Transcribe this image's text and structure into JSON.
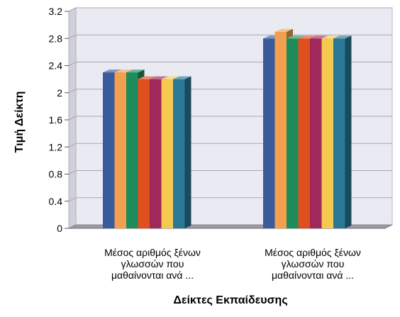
{
  "chart_data": {
    "type": "bar",
    "style": "3d-clustered",
    "title": "",
    "xlabel": "Δείκτες Εκπαίδευσης",
    "ylabel": "Τιμή Δείκτη",
    "ylim": [
      0,
      3.2
    ],
    "yticks": [
      "0",
      "0.4",
      "0.8",
      "1.2",
      "1.6",
      "2",
      "2.4",
      "2.8",
      "3.2"
    ],
    "grid": true,
    "legend": "none",
    "categories": [
      [
        "Μέσος αριθμός ξένων",
        "γλωσσών που",
        "μαθαίνονται ανά ..."
      ],
      [
        "Μέσος αριθμός ξένων",
        "γλωσσών που",
        "μαθαίνονται ανά ..."
      ]
    ],
    "series": [
      {
        "color": "#3a5a9c",
        "values": [
          2.3,
          2.8
        ]
      },
      {
        "color": "#f2a050",
        "values": [
          2.3,
          2.9
        ]
      },
      {
        "color": "#1e8c5a",
        "values": [
          2.3,
          2.8
        ]
      },
      {
        "color": "#e0501e",
        "values": [
          2.2,
          2.8
        ]
      },
      {
        "color": "#a0285a",
        "values": [
          2.2,
          2.8
        ]
      },
      {
        "color": "#f5c850",
        "values": [
          2.2,
          2.8
        ]
      },
      {
        "color": "#287896",
        "values": [
          2.2,
          2.8
        ]
      }
    ]
  }
}
